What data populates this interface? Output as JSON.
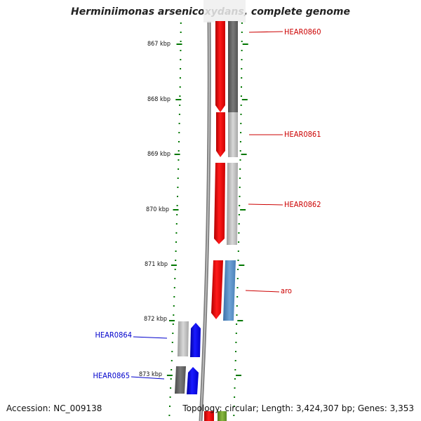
{
  "title": "Herminiimonas arsenicoxydans, complete genome",
  "footer": {
    "accession": "Accession: NC_009138",
    "summary": "Topology: circular; Length: 3,424,307 bp; Genes: 3,353"
  },
  "scale_labels": [
    "867 kbp",
    "868 kbp",
    "869 kbp",
    "870 kbp",
    "871 kbp",
    "872 kbp",
    "873 kbp"
  ],
  "gene_labels": [
    {
      "text": "HEAR0860",
      "color": "#cc0000"
    },
    {
      "text": "HEAR0861",
      "color": "#cc0000"
    },
    {
      "text": "HEAR0862",
      "color": "#cc0000"
    },
    {
      "text": "aro",
      "color": "#cc0000"
    },
    {
      "text": "HEAR0864",
      "color": "#0000cc"
    },
    {
      "text": "HEAR0865",
      "color": "#0000cc"
    }
  ],
  "colors": {
    "forward_strand": "#ff0000",
    "reverse_strand": "#0000ff",
    "backbone": "#888888",
    "tick": "#007700",
    "rna_feature": "#4f86c0",
    "gene_shadow": "#666666",
    "gene_shadow_light": "#b4b4b4",
    "other_feature": "#6a9a2a"
  }
}
